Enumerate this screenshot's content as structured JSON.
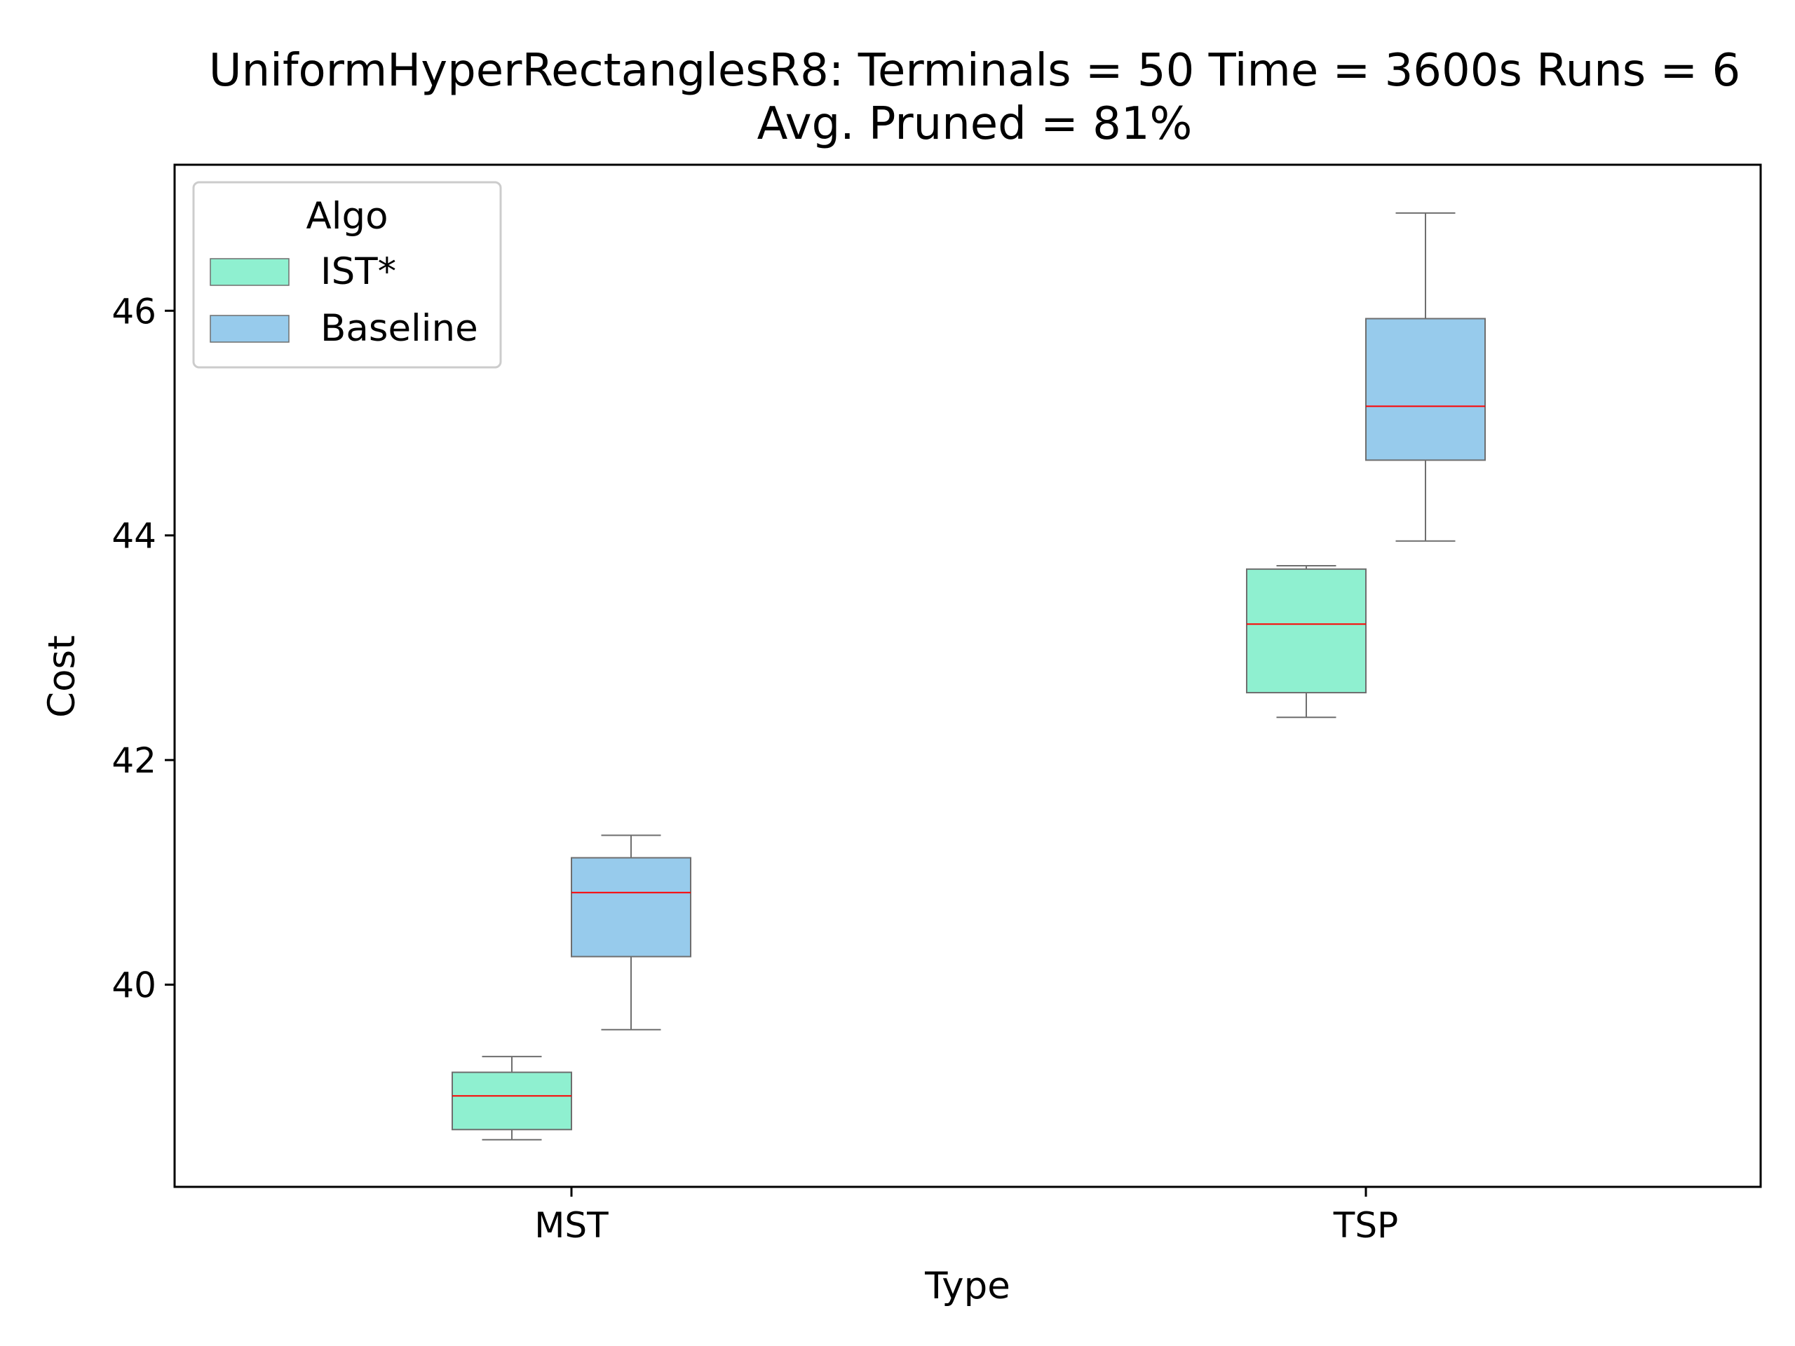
{
  "chart_data": {
    "type": "box",
    "title_lines": [
      "UniformHyperRectanglesR8:  Terminals = 50  Time = 3600s  Runs = 6",
      "Avg. Pruned = 81%"
    ],
    "xlabel": "Type",
    "ylabel": "Cost",
    "categories": [
      "MST",
      "TSP"
    ],
    "ylim": [
      38.2,
      47.3
    ],
    "yticks": [
      40,
      42,
      44,
      46
    ],
    "ytick_labels": [
      "40",
      "42",
      "44",
      "46"
    ],
    "grid": false,
    "legend": {
      "title": "Algo",
      "position": "top-left"
    },
    "colors": {
      "box_edge": "#6e6e6e",
      "median": "#ff0000",
      "axes": "#000000"
    },
    "series": [
      {
        "name": "IST*",
        "color": "#8ff0d0",
        "boxes": [
          {
            "category": "MST",
            "whislo": 38.62,
            "q1": 38.71,
            "med": 39.01,
            "q3": 39.22,
            "whishi": 39.36
          },
          {
            "category": "TSP",
            "whislo": 42.38,
            "q1": 42.6,
            "med": 43.21,
            "q3": 43.7,
            "whishi": 43.73
          }
        ]
      },
      {
        "name": "Baseline",
        "color": "#97cbec",
        "boxes": [
          {
            "category": "MST",
            "whislo": 39.6,
            "q1": 40.25,
            "med": 40.82,
            "q3": 41.13,
            "whishi": 41.33
          },
          {
            "category": "TSP",
            "whislo": 43.95,
            "q1": 44.67,
            "med": 45.15,
            "q3": 45.93,
            "whishi": 46.87
          }
        ]
      }
    ]
  }
}
